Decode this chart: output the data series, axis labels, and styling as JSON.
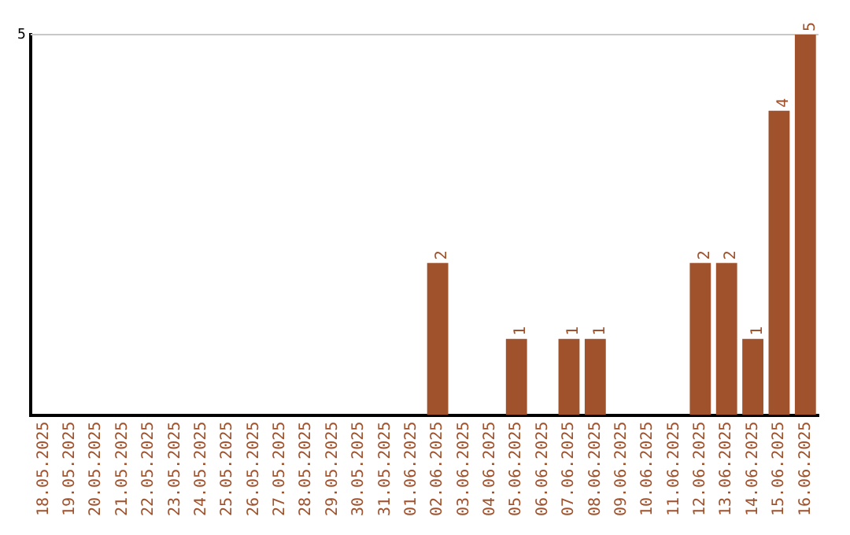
{
  "chart_data": {
    "type": "bar",
    "categories": [
      "18.05.2025",
      "19.05.2025",
      "20.05.2025",
      "21.05.2025",
      "22.05.2025",
      "23.05.2025",
      "24.05.2025",
      "25.05.2025",
      "26.05.2025",
      "27.05.2025",
      "28.05.2025",
      "29.05.2025",
      "30.05.2025",
      "31.05.2025",
      "01.06.2025",
      "02.06.2025",
      "03.06.2025",
      "04.06.2025",
      "05.06.2025",
      "06.06.2025",
      "07.06.2025",
      "08.06.2025",
      "09.06.2025",
      "10.06.2025",
      "11.06.2025",
      "12.06.2025",
      "13.06.2025",
      "14.06.2025",
      "15.06.2025",
      "16.06.2025"
    ],
    "values": [
      null,
      null,
      null,
      null,
      null,
      null,
      null,
      null,
      null,
      null,
      null,
      null,
      null,
      null,
      null,
      2,
      null,
      null,
      1,
      null,
      1,
      1,
      null,
      null,
      null,
      2,
      2,
      1,
      4,
      5
    ],
    "value_labels": [
      null,
      null,
      null,
      null,
      null,
      null,
      null,
      null,
      null,
      null,
      null,
      null,
      null,
      null,
      null,
      "2",
      null,
      null,
      "1",
      null,
      "1",
      "1",
      null,
      null,
      null,
      "2",
      "2",
      "1",
      "4",
      "5"
    ],
    "color": "#a0522d",
    "ylim": [
      0,
      5
    ],
    "yticks": [
      5
    ],
    "ref_lines": [
      {
        "axis": "y",
        "value": 5,
        "color": "#c8c8c8"
      }
    ],
    "legend": false
  }
}
